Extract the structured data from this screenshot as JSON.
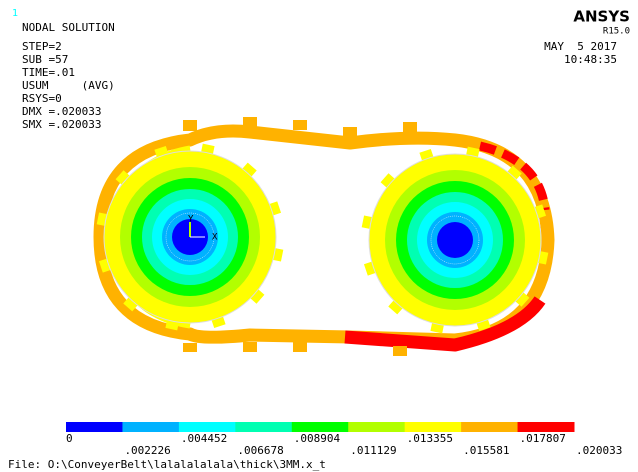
{
  "window_number": "1",
  "header": {
    "title": "NODAL SOLUTION",
    "lines": [
      "STEP=2",
      "SUB =57",
      "TIME=.01",
      "USUM     (AVG)",
      "RSYS=0",
      "DMX =.020033",
      "SMX =.020033"
    ]
  },
  "brand": {
    "name": "ANSYS",
    "version": "R15.0"
  },
  "timestamp": {
    "date": "MAY  5 2017",
    "time": "10:48:35"
  },
  "triad": {
    "y": "Y",
    "x": "X"
  },
  "legend": {
    "colors": [
      "#0000ff",
      "#00b2ff",
      "#00ffff",
      "#00ffb2",
      "#00ff00",
      "#b2ff00",
      "#ffff00",
      "#ffb200",
      "#ff0000"
    ],
    "labels": [
      "0",
      ".002226",
      ".004452",
      ".006678",
      ".008904",
      ".011129",
      ".013355",
      ".015581",
      ".017807",
      ".020033"
    ]
  },
  "footer": "File: O:\\ConveyerBelt\\lalalalalala\\thick\\3MM.x_t"
}
